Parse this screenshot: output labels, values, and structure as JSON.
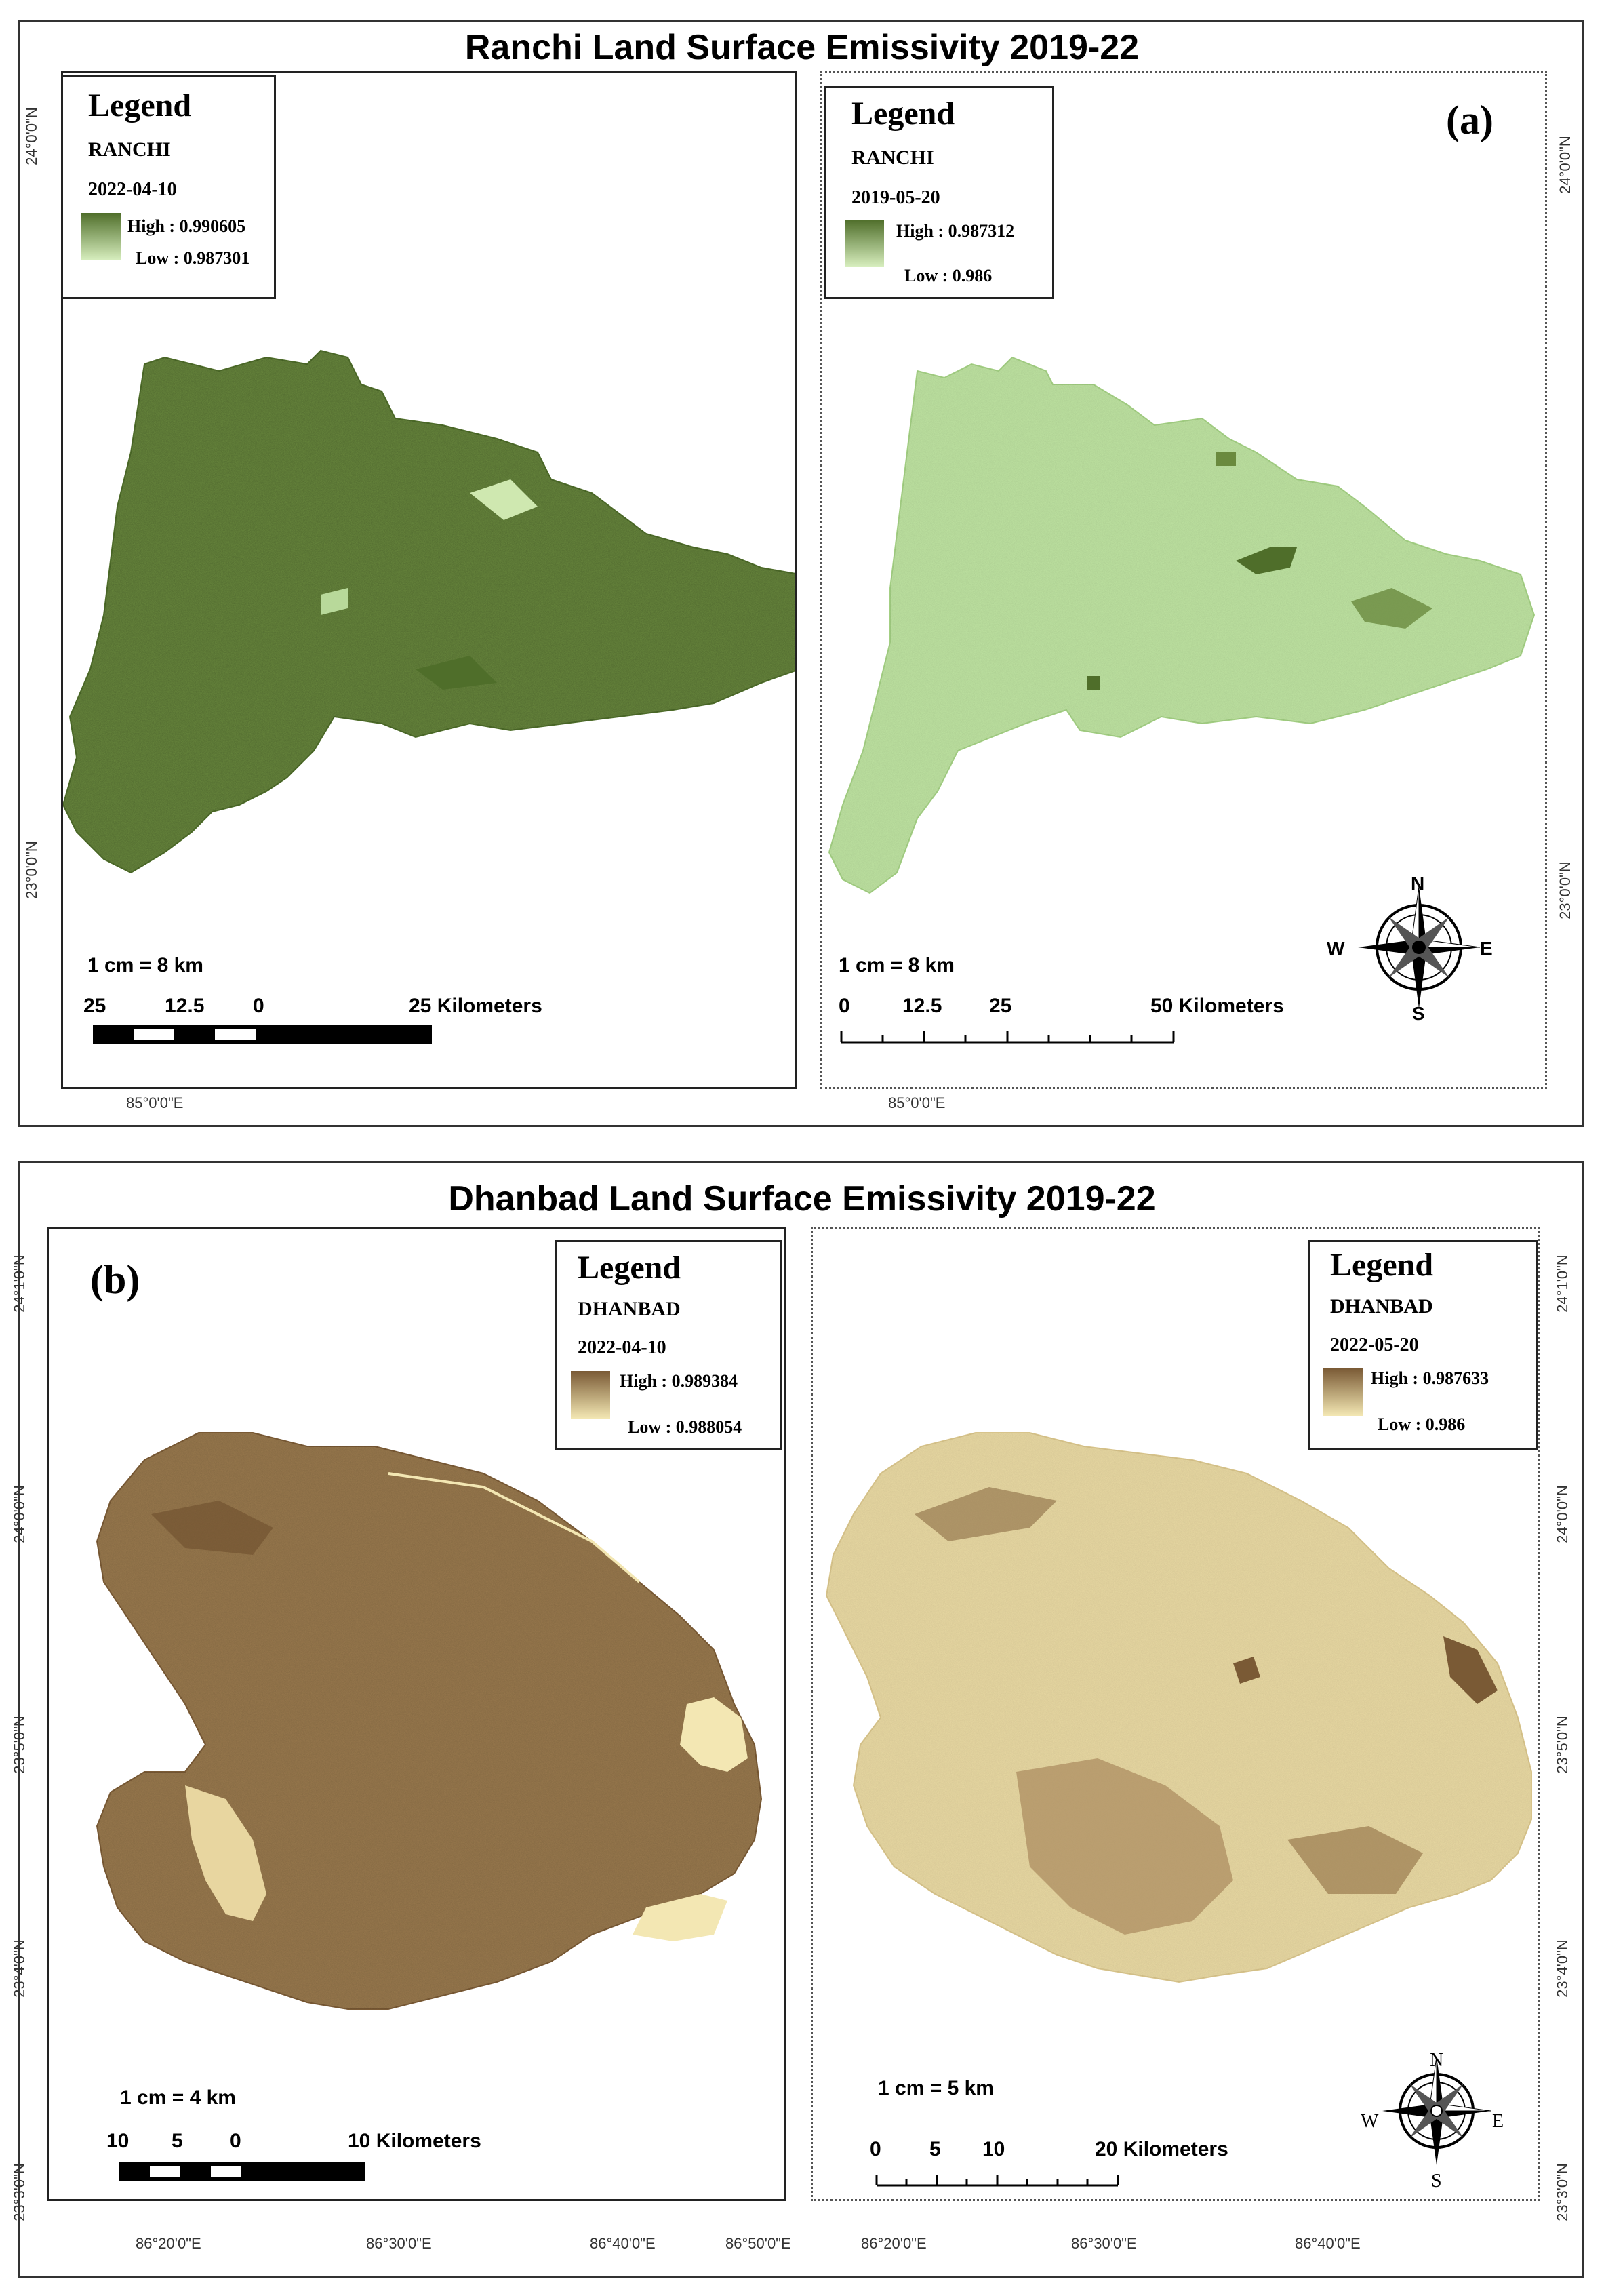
{
  "top_section": {
    "title": "Ranchi Land Surface Emissivity 2019-22",
    "tag": "(a)",
    "left_map": {
      "legend": {
        "heading": "Legend",
        "name": "RANCHI",
        "date": "2022-04-10",
        "high": "High : 0.990605",
        "low": "Low : 0.987301"
      },
      "scale_ratio": "1 cm = 8 km",
      "scale_labels": [
        "25",
        "12.5",
        "0",
        "25 Kilometers"
      ],
      "lat_labels": [
        "24°0'0\"N",
        "23°0'0\"N"
      ],
      "lon_label": "85°0'0\"E",
      "colors": {
        "high": "#4f6e2a",
        "low": "#d8efbf",
        "fill": "#6a8a3e"
      }
    },
    "right_map": {
      "legend": {
        "heading": "Legend",
        "name": "RANCHI",
        "date": "2019-05-20",
        "high": "High : 0.987312",
        "low": "Low : 0.986"
      },
      "scale_ratio": "1 cm = 8 km",
      "scale_labels": [
        "0",
        "12.5",
        "25",
        "50 Kilometers"
      ],
      "lat_labels": [
        "24°0'0\"N",
        "23°0'0\"N"
      ],
      "lon_label": "85°0'0\"E",
      "compass": {
        "n": "N",
        "s": "S",
        "e": "E",
        "w": "W"
      },
      "colors": {
        "high": "#4f6e2a",
        "low": "#d8efbf",
        "fill": "#bfe4a2"
      }
    }
  },
  "bottom_section": {
    "title": "Dhanbad Land Surface Emissivity 2019-22",
    "tag": "(b)",
    "left_map": {
      "legend": {
        "heading": "Legend",
        "name": "DHANBAD",
        "date": "2022-04-10",
        "high": "High : 0.989384",
        "low": "Low : 0.988054"
      },
      "scale_ratio": "1 cm = 4 km",
      "scale_labels": [
        "10",
        "5",
        "0",
        "10 Kilometers"
      ],
      "lat_labels": [
        "24°1'0\"N",
        "24°0'0\"N",
        "23°5'0\"N",
        "23°4'0\"N",
        "23°3'0\"N"
      ],
      "colors": {
        "high": "#7a5a35",
        "low": "#f3e7b3",
        "fill": "#9a7a4e"
      }
    },
    "right_map": {
      "legend": {
        "heading": "Legend",
        "name": "DHANBAD",
        "date": "2022-05-20",
        "high": "High : 0.987633",
        "low": "Low : 0.986"
      },
      "scale_ratio": "1 cm = 5 km",
      "scale_labels": [
        "0",
        "5",
        "10",
        "20 Kilometers"
      ],
      "lat_labels": [
        "24°1'0\"N",
        "24°0'0\"N",
        "23°5'0\"N",
        "23°4'0\"N",
        "23°3'0\"N"
      ],
      "compass": {
        "n": "N",
        "s": "S",
        "e": "E",
        "w": "W"
      },
      "colors": {
        "high": "#7a5a35",
        "low": "#f3e7b3",
        "fill": "#e9d9a3"
      }
    },
    "lon_labels": [
      "86°20'0\"E",
      "86°30'0\"E",
      "86°40'0\"E",
      "86°50'0\"E"
    ]
  }
}
